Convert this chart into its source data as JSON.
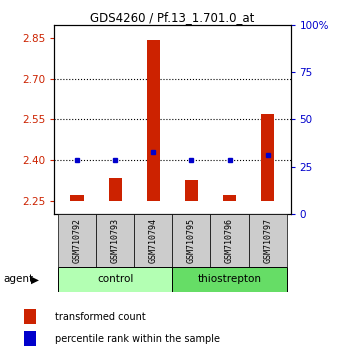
{
  "title": "GDS4260 / Pf.13_1.701.0_at",
  "samples": [
    "GSM710792",
    "GSM710793",
    "GSM710794",
    "GSM710795",
    "GSM710796",
    "GSM710797"
  ],
  "group_colors": [
    "#b3ffb3",
    "#66dd66"
  ],
  "bar_bottom": 2.25,
  "transformed_counts": [
    2.27,
    2.335,
    2.845,
    2.325,
    2.27,
    2.57
  ],
  "percentile_values": [
    2.4,
    2.4,
    2.43,
    2.4,
    2.4,
    2.42
  ],
  "ylim_left": [
    2.2,
    2.9
  ],
  "yticks_left": [
    2.25,
    2.4,
    2.55,
    2.7,
    2.85
  ],
  "ylim_right": [
    0,
    100
  ],
  "yticks_right": [
    0,
    25,
    50,
    75,
    100
  ],
  "yticklabels_right": [
    "0",
    "25",
    "50",
    "75",
    "100%"
  ],
  "hlines": [
    2.7,
    2.55,
    2.4
  ],
  "bar_color": "#cc2200",
  "dot_color": "#0000cc",
  "left_tick_color": "#cc2200",
  "right_tick_color": "#0000cc",
  "legend_bar_label": "transformed count",
  "legend_dot_label": "percentile rank within the sample",
  "agent_label": "agent",
  "figsize": [
    3.5,
    3.54
  ],
  "dpi": 100
}
